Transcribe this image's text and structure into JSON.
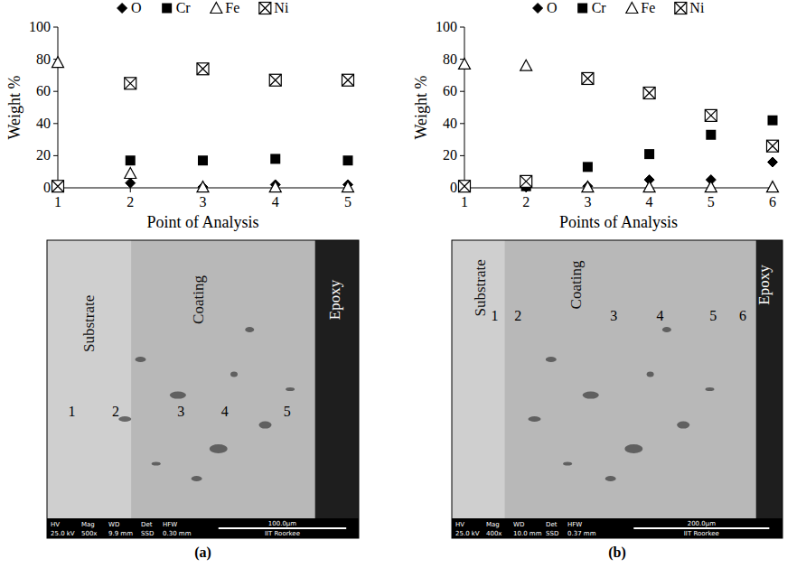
{
  "chart_data": [
    {
      "type": "scatter",
      "x_label": "Point of Analysis",
      "y_label": "Weight %",
      "x": [
        1,
        2,
        3,
        4,
        5
      ],
      "xlim": [
        1,
        5
      ],
      "xticks": [
        1,
        2,
        3,
        4,
        5
      ],
      "ylim": [
        0,
        100
      ],
      "yticks": [
        0,
        20,
        40,
        60,
        80,
        100
      ],
      "grid": false,
      "legend": "top",
      "series": [
        {
          "name": "O",
          "color": "#000000",
          "marker": "diamond",
          "values": [
            1,
            3,
            0.5,
            2,
            2
          ]
        },
        {
          "name": "Cr",
          "color": "#000000",
          "marker": "square",
          "values": [
            0.5,
            17,
            17,
            18,
            17
          ]
        },
        {
          "name": "Fe",
          "color": "#000000",
          "marker": "triangle-open",
          "values": [
            78,
            9,
            0.5,
            0.5,
            0.5
          ]
        },
        {
          "name": "Ni",
          "color": "#000000",
          "marker": "square-x",
          "values": [
            1,
            65,
            74,
            67,
            67
          ]
        }
      ]
    },
    {
      "type": "scatter",
      "x_label": "Points of Analysis",
      "y_label": "Weight %",
      "x": [
        1,
        2,
        3,
        4,
        5,
        6
      ],
      "xlim": [
        1,
        6
      ],
      "xticks": [
        1,
        2,
        3,
        4,
        5,
        6
      ],
      "ylim": [
        0,
        100
      ],
      "yticks": [
        0,
        20,
        40,
        60,
        80,
        100
      ],
      "grid": false,
      "legend": "top",
      "series": [
        {
          "name": "O",
          "color": "#000000",
          "marker": "diamond",
          "values": [
            1,
            0.5,
            1,
            5,
            5,
            16
          ]
        },
        {
          "name": "Cr",
          "color": "#000000",
          "marker": "square",
          "values": [
            0.5,
            1,
            13,
            21,
            33,
            42
          ]
        },
        {
          "name": "Fe",
          "color": "#000000",
          "marker": "triangle-open",
          "values": [
            77,
            76,
            0.5,
            0.5,
            0.5,
            0.5
          ]
        },
        {
          "name": "Ni",
          "color": "#000000",
          "marker": "square-x",
          "values": [
            1,
            4,
            68,
            59,
            45,
            26
          ]
        }
      ]
    }
  ],
  "micrographs": [
    {
      "panel": "(a)",
      "regions": [
        "Substrate",
        "Coating",
        "Epoxy"
      ],
      "points": [
        1,
        2,
        3,
        4,
        5
      ],
      "info_header": [
        "HV",
        "Mag",
        "WD",
        "Det",
        "HFW"
      ],
      "info_values": [
        "25.0 kV",
        "500x",
        "9.9 mm",
        "SSD",
        "0.30 mm"
      ],
      "scale_bar": "100.0µm",
      "institution": "IIT Roorkee"
    },
    {
      "panel": "(b)",
      "regions": [
        "Substrate",
        "Coating",
        "Epoxy"
      ],
      "points": [
        1,
        2,
        3,
        4,
        5,
        6
      ],
      "info_header": [
        "HV",
        "Mag",
        "WD",
        "Det",
        "HFW"
      ],
      "info_values": [
        "25.0 kV",
        "400x",
        "10.0 mm",
        "SSD",
        "0.37 mm"
      ],
      "scale_bar": "200.0µm",
      "institution": "IIT Roorkee"
    }
  ]
}
